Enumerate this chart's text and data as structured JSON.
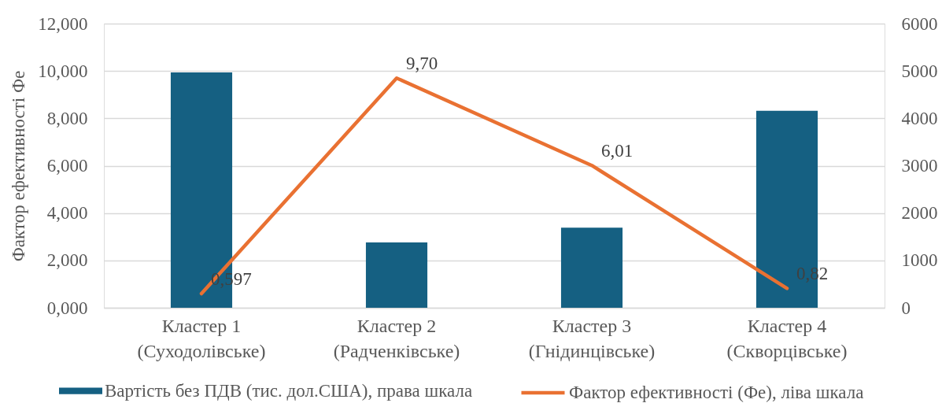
{
  "chart_data": {
    "type": "bar",
    "ylabel": "Фактор ефективності Фе",
    "categories": [
      "Кластер 1\n(Суходолівське)",
      "Кластер 2\n(Радченківське)",
      "Кластер 3\n(Гнідинцівське)",
      "Кластер 4\n(Скворцівське)"
    ],
    "series": [
      {
        "name": "Вартість без ПДВ (тис. дол.США), права шкала",
        "axis": "y2",
        "color": "#156082",
        "values": [
          4970,
          1380,
          1690,
          4160
        ]
      },
      {
        "name": "Фактор ефективності (Фе), ліва шкала",
        "type": "line",
        "color": "#e97132",
        "values": [
          0.597,
          9.7,
          6.01,
          0.82
        ],
        "value_labels": [
          "0,597",
          "9,70",
          "6,01",
          "0,82"
        ]
      }
    ],
    "ylim": [
      0,
      12
    ],
    "yticks": [
      {
        "value": 0,
        "label": "0,000"
      },
      {
        "value": 2,
        "label": "2,000"
      },
      {
        "value": 4,
        "label": "4,000"
      },
      {
        "value": 6,
        "label": "6,000"
      },
      {
        "value": 8,
        "label": "8,000"
      },
      {
        "value": 10,
        "label": "10,000"
      },
      {
        "value": 12,
        "label": "12,000"
      }
    ],
    "y2lim": [
      0,
      6000
    ],
    "y2ticks": [
      0,
      1000,
      2000,
      3000,
      4000,
      5000,
      6000
    ],
    "grid": "y",
    "legend": "bottom"
  }
}
